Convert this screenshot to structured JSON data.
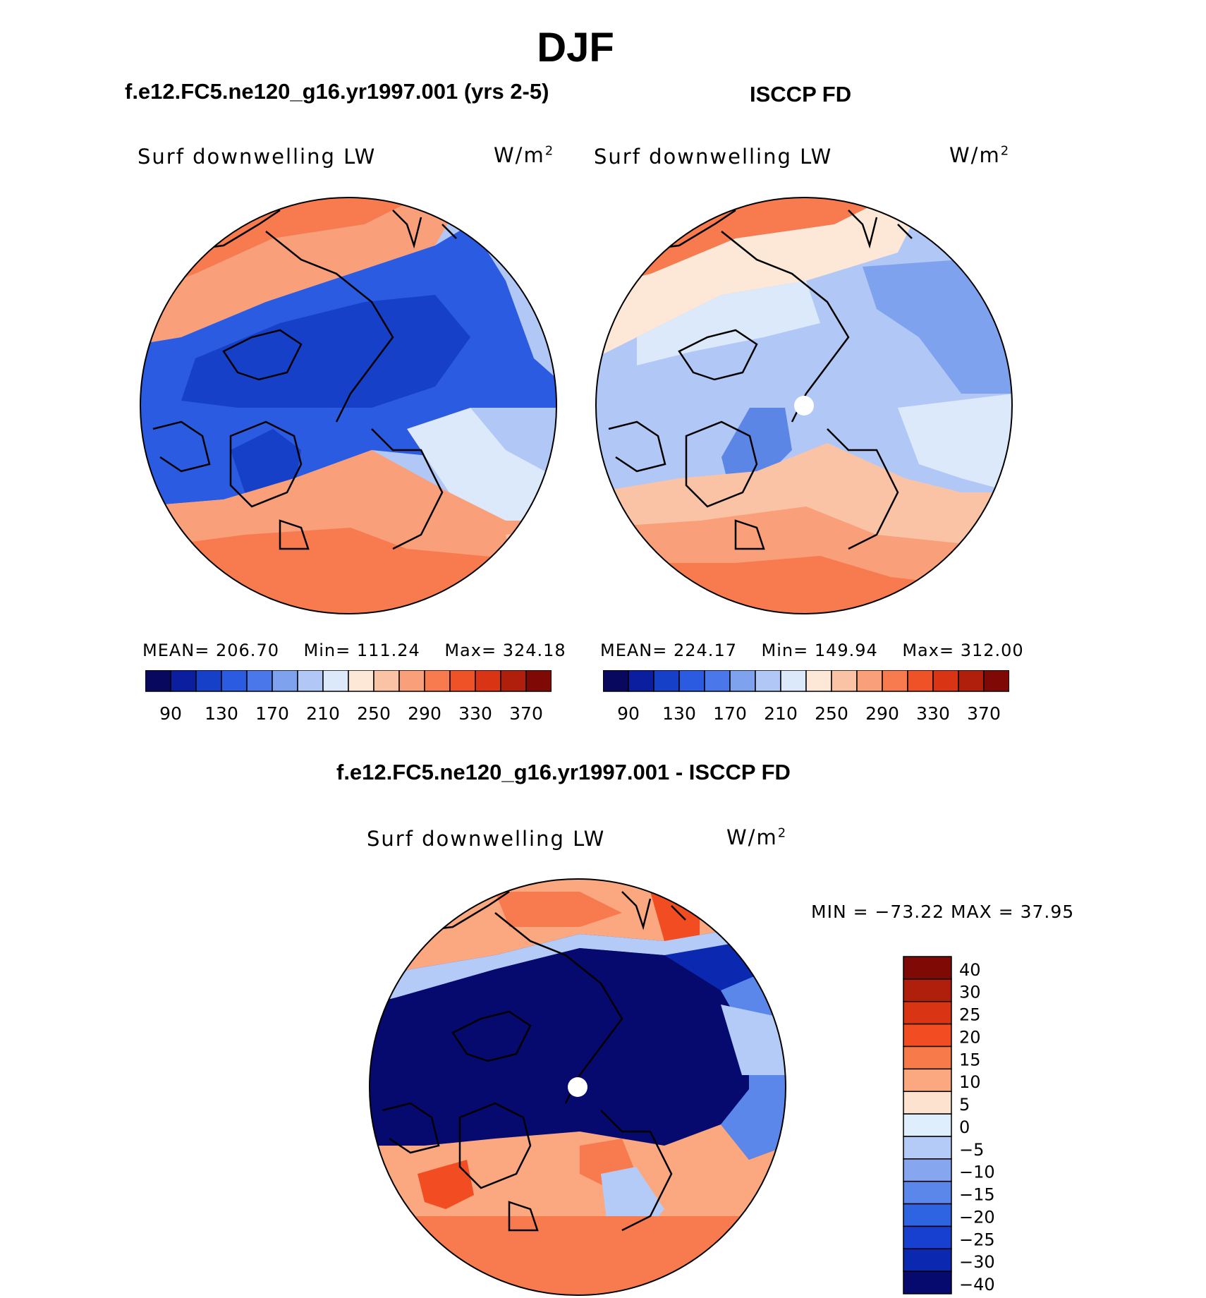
{
  "title": "DJF",
  "panels": [
    {
      "id": "model",
      "title": "f.e12.FC5.ne120_g16.yr1997.001 (yrs 2-5)",
      "variable": "Surf downwelling LW",
      "units_base": "W/m",
      "units_exp": "2",
      "stats": {
        "mean_label": "MEAN=",
        "mean": "206.70",
        "min_label": "Min=",
        "min": "111.24",
        "max_label": "Max=",
        "max": "324.18"
      }
    },
    {
      "id": "obs",
      "title": "ISCCP FD",
      "variable": "Surf downwelling LW",
      "units_base": "W/m",
      "units_exp": "2",
      "stats": {
        "mean_label": "MEAN=",
        "mean": "224.17",
        "min_label": "Min=",
        "min": "149.94",
        "max_label": "Max=",
        "max": "312.00"
      }
    }
  ],
  "diff": {
    "title": "f.e12.FC5.ne120_g16.yr1997.001 - ISCCP FD",
    "variable": "Surf downwelling LW",
    "units_base": "W/m",
    "units_exp": "2",
    "minmax_text": "MIN = −73.22 MAX =  37.95"
  },
  "colorbar_h": {
    "colors": [
      "#08085e",
      "#0b1ea0",
      "#1740c8",
      "#2b5be0",
      "#4a78ea",
      "#7fa2ef",
      "#b1c8f6",
      "#dbe9fb",
      "#fde7d6",
      "#fbc3a6",
      "#f99f79",
      "#f87a4f",
      "#ef5226",
      "#d93413",
      "#b01e0c",
      "#7f0a05"
    ],
    "labels": [
      "90",
      "130",
      "170",
      "210",
      "250",
      "290",
      "330",
      "370"
    ]
  },
  "colorbar_v": {
    "colors": [
      "#7f0a05",
      "#b01e0c",
      "#d93413",
      "#f24d22",
      "#f77a4a",
      "#fba780",
      "#fde2cf",
      "#dfeefc",
      "#b3cbf6",
      "#86a7ef",
      "#5a87e9",
      "#2e63e2",
      "#1740d0",
      "#0a28b0",
      "#060a6e"
    ],
    "labels": [
      "40",
      "30",
      "25",
      "20",
      "15",
      "10",
      "5",
      "0",
      "−5",
      "−10",
      "−15",
      "−20",
      "−25",
      "−30",
      "−40"
    ]
  },
  "map_colors": {
    "model": [
      "#f87a4f",
      "#f99f79",
      "#fbc3a6",
      "#fde7d6",
      "#dbe9fb",
      "#b1c8f6",
      "#7fa2ef",
      "#4a78ea",
      "#2b5be0",
      "#1740c8"
    ],
    "obs": [
      "#f87a4f",
      "#f99f79",
      "#fbc3a6",
      "#fde7d6",
      "#dbe9fb",
      "#c6d8f8",
      "#b1c8f6",
      "#9db7f2",
      "#7fa2ef",
      "#5b86e6"
    ],
    "diff": [
      "#f24d22",
      "#f87a4f",
      "#fba780",
      "#fde2cf",
      "#b3cbf6",
      "#5a87e9",
      "#1740d0",
      "#0a28b0",
      "#060a6e"
    ]
  }
}
